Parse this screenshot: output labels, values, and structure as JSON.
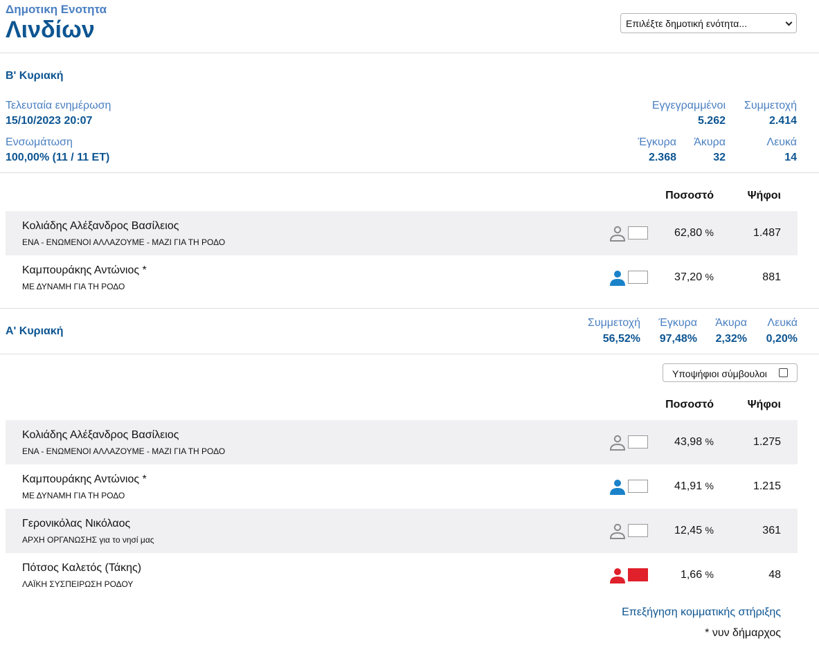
{
  "header": {
    "supertitle": "Δημοτικη Ενοτητα",
    "title": "Λινδίων",
    "select_value": "Επιλέξτε δημοτική ενότητα..."
  },
  "round2": {
    "label": "Β' Κυριακή",
    "last_update_label": "Τελευταία ενημέρωση",
    "last_update_value": "15/10/2023 20:07",
    "integration_label": "Ενσωμάτωση",
    "integration_value": "100,00% (11 / 11 ΕΤ)",
    "registered_label": "Εγγεγραμμένοι",
    "registered_value": "5.262",
    "turnout_label": "Συμμετοχή",
    "turnout_value": "2.414",
    "valid_label": "Έγκυρα",
    "valid_value": "2.368",
    "invalid_label": "Άκυρα",
    "invalid_value": "32",
    "blank_label": "Λευκά",
    "blank_value": "14",
    "col_pct": "Ποσοστό",
    "col_votes": "Ψήφοι",
    "candidates": [
      {
        "name": "Κολιάδης Αλέξανδρος Βασίλειος",
        "party": "ΕΝΑ - ΕΝΩΜΕΝΟΙ ΑΛΛΑΖΟΥΜΕ - ΜΑΖΙ ΓΙΑ ΤΗ ΡΟΔΟ",
        "pct": "62,80",
        "pct_unit": "%",
        "votes": "1.487",
        "icon_color": "#8a8a8a",
        "icon_style": "outline",
        "swatch_color": "#ffffff"
      },
      {
        "name": "Καμπουράκης Αντώνιος *",
        "party": "ΜΕ ΔΥΝΑΜΗ ΓΙΑ ΤΗ ΡΟΔΟ",
        "pct": "37,20",
        "pct_unit": "%",
        "votes": "881",
        "icon_color": "#1a82c9",
        "icon_style": "filled",
        "swatch_color": "#ffffff"
      }
    ]
  },
  "round1": {
    "label": "Α' Κυριακή",
    "turnout_label": "Συμμετοχή",
    "turnout_value": "56,52%",
    "valid_label": "Έγκυρα",
    "valid_value": "97,48%",
    "invalid_label": "Άκυρα",
    "invalid_value": "2,32%",
    "blank_label": "Λευκά",
    "blank_value": "0,20%",
    "toggle_label": "Υποψήφιοι σύμβουλοι",
    "col_pct": "Ποσοστό",
    "col_votes": "Ψήφοι",
    "candidates": [
      {
        "name": "Κολιάδης Αλέξανδρος Βασίλειος",
        "party": "ΕΝΑ - ΕΝΩΜΕΝΟΙ ΑΛΛΑΖΟΥΜΕ - ΜΑΖΙ ΓΙΑ ΤΗ ΡΟΔΟ",
        "pct": "43,98",
        "pct_unit": "%",
        "votes": "1.275",
        "icon_color": "#8a8a8a",
        "icon_style": "outline",
        "swatch_color": "#ffffff"
      },
      {
        "name": "Καμπουράκης Αντώνιος *",
        "party": "ΜΕ ΔΥΝΑΜΗ ΓΙΑ ΤΗ ΡΟΔΟ",
        "pct": "41,91",
        "pct_unit": "%",
        "votes": "1.215",
        "icon_color": "#1a82c9",
        "icon_style": "filled",
        "swatch_color": "#ffffff"
      },
      {
        "name": "Γερονικόλας Νικόλαος",
        "party": "ΑΡΧΗ ΟΡΓΑΝΩΣΗΣ για το νησί μας",
        "pct": "12,45",
        "pct_unit": "%",
        "votes": "361",
        "icon_color": "#8a8a8a",
        "icon_style": "outline",
        "swatch_color": "#ffffff"
      },
      {
        "name": "Πότσος Καλετός (Τάκης)",
        "party": "ΛΑΪΚΗ ΣΥΣΠΕΙΡΩΣΗ ΡΟΔΟΥ",
        "pct": "1,66",
        "pct_unit": "%",
        "votes": "48",
        "icon_color": "#e0202a",
        "icon_style": "filled",
        "swatch_color": "#e0202a"
      }
    ]
  },
  "footer": {
    "support_link": "Επεξήγηση κομματικής στήριξης",
    "mayor_note": "* νυν δήμαρχος"
  }
}
